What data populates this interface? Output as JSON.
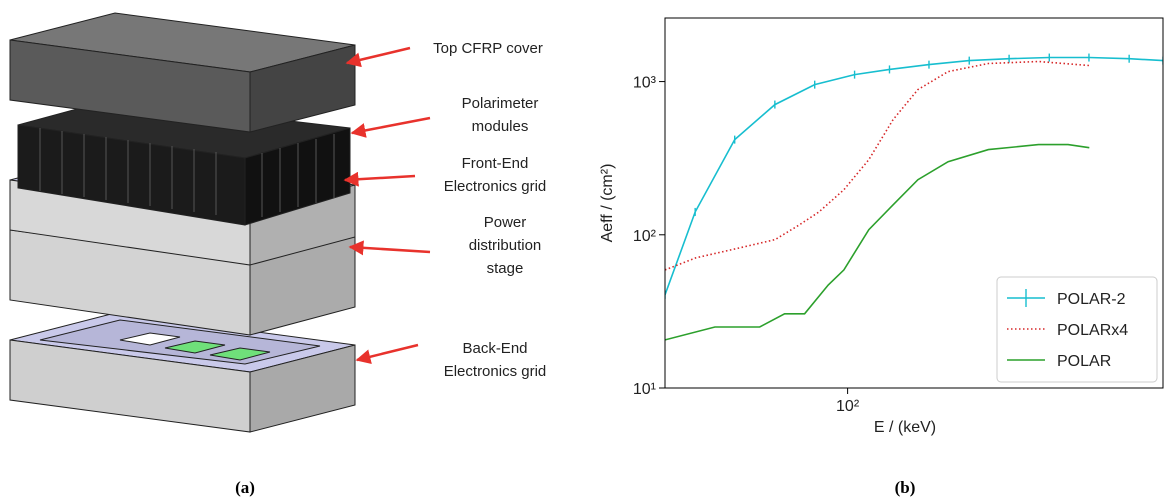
{
  "panel_a": {
    "labels": [
      {
        "lines": [
          "Top CFRP cover"
        ]
      },
      {
        "lines": [
          "Polarimeter",
          "modules"
        ]
      },
      {
        "lines": [
          "Front-End",
          "Electronics grid"
        ]
      },
      {
        "lines": [
          "Power",
          "distribution",
          "stage"
        ]
      },
      {
        "lines": [
          "Back-End",
          "Electronics grid"
        ]
      }
    ],
    "caption": "(a)"
  },
  "panel_b": {
    "caption": "(b)"
  },
  "chart_data": {
    "type": "line",
    "xlabel": "E / (keV)",
    "ylabel": "Aeff / (cm²)",
    "xscale": "log",
    "yscale": "log",
    "xlim": [
      30,
      800
    ],
    "ylim": [
      10,
      2600
    ],
    "xticks": [
      {
        "value": 100,
        "label": "10²"
      }
    ],
    "yticks": [
      {
        "value": 10,
        "label": "10¹"
      },
      {
        "value": 100,
        "label": "10²"
      },
      {
        "value": 1000,
        "label": "10³"
      }
    ],
    "legend": "lower right",
    "series": [
      {
        "name": "POLAR-2",
        "color": "#17becf",
        "style": "solid",
        "markers": true,
        "x": [
          30,
          36.6,
          47.5,
          61.9,
          80.5,
          104.7,
          131.8,
          171,
          223,
          290,
          378,
          491,
          640,
          800
        ],
        "values": [
          40.5,
          141,
          418,
          708,
          955,
          1110,
          1200,
          1290,
          1370,
          1410,
          1435,
          1435,
          1410,
          1370
        ]
      },
      {
        "name": "POLARx4",
        "color": "#d62728",
        "style": "dotted",
        "markers": false,
        "x": [
          30,
          36.8,
          48.9,
          62,
          72.7,
          82.8,
          97.6,
          115,
          135,
          159,
          194,
          253,
          352,
          491
        ],
        "values": [
          59,
          70.8,
          82,
          93,
          116,
          141,
          197,
          309,
          565,
          887,
          1161,
          1312,
          1352,
          1274
        ]
      },
      {
        "name": "POLAR",
        "color": "#2ca02c",
        "style": "solid",
        "markers": false,
        "x": [
          30,
          41.7,
          56,
          66,
          75.3,
          88,
          97.6,
          115,
          135,
          159,
          194,
          253,
          352,
          428,
          492
        ],
        "values": [
          20.6,
          25,
          25,
          30.5,
          30.5,
          47,
          59,
          108,
          157,
          229,
          300,
          360,
          388,
          388,
          370
        ]
      }
    ]
  }
}
